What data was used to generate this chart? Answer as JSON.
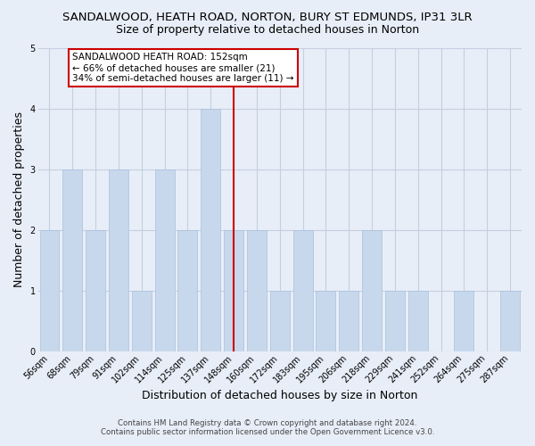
{
  "title": "SANDALWOOD, HEATH ROAD, NORTON, BURY ST EDMUNDS, IP31 3LR",
  "subtitle": "Size of property relative to detached houses in Norton",
  "xlabel": "Distribution of detached houses by size in Norton",
  "ylabel": "Number of detached properties",
  "bar_labels": [
    "56sqm",
    "68sqm",
    "79sqm",
    "91sqm",
    "102sqm",
    "114sqm",
    "125sqm",
    "137sqm",
    "148sqm",
    "160sqm",
    "172sqm",
    "183sqm",
    "195sqm",
    "206sqm",
    "218sqm",
    "229sqm",
    "241sqm",
    "252sqm",
    "264sqm",
    "275sqm",
    "287sqm"
  ],
  "bar_values": [
    2,
    3,
    2,
    3,
    1,
    3,
    2,
    4,
    2,
    2,
    1,
    2,
    1,
    1,
    2,
    1,
    1,
    0,
    1,
    0,
    1
  ],
  "bar_color": "#c8d8ec",
  "bar_edge_color": "#a8c0de",
  "reference_line_index": 8,
  "annotation_title": "SANDALWOOD HEATH ROAD: 152sqm",
  "annotation_line1": "← 66% of detached houses are smaller (21)",
  "annotation_line2": "34% of semi-detached houses are larger (11) →",
  "ylim": [
    0,
    5
  ],
  "yticks": [
    0,
    1,
    2,
    3,
    4,
    5
  ],
  "footer_line1": "Contains HM Land Registry data © Crown copyright and database right 2024.",
  "footer_line2": "Contains public sector information licensed under the Open Government Licence v3.0.",
  "background_color": "#e8eef8",
  "plot_bg_color": "#e8eef8",
  "title_fontsize": 9.5,
  "subtitle_fontsize": 9,
  "axis_label_fontsize": 9,
  "tick_fontsize": 7,
  "annotation_box_color": "#ffffff",
  "annotation_border_color": "#cc0000",
  "ref_line_color": "#cc0000",
  "grid_color": "#c5cfe0"
}
